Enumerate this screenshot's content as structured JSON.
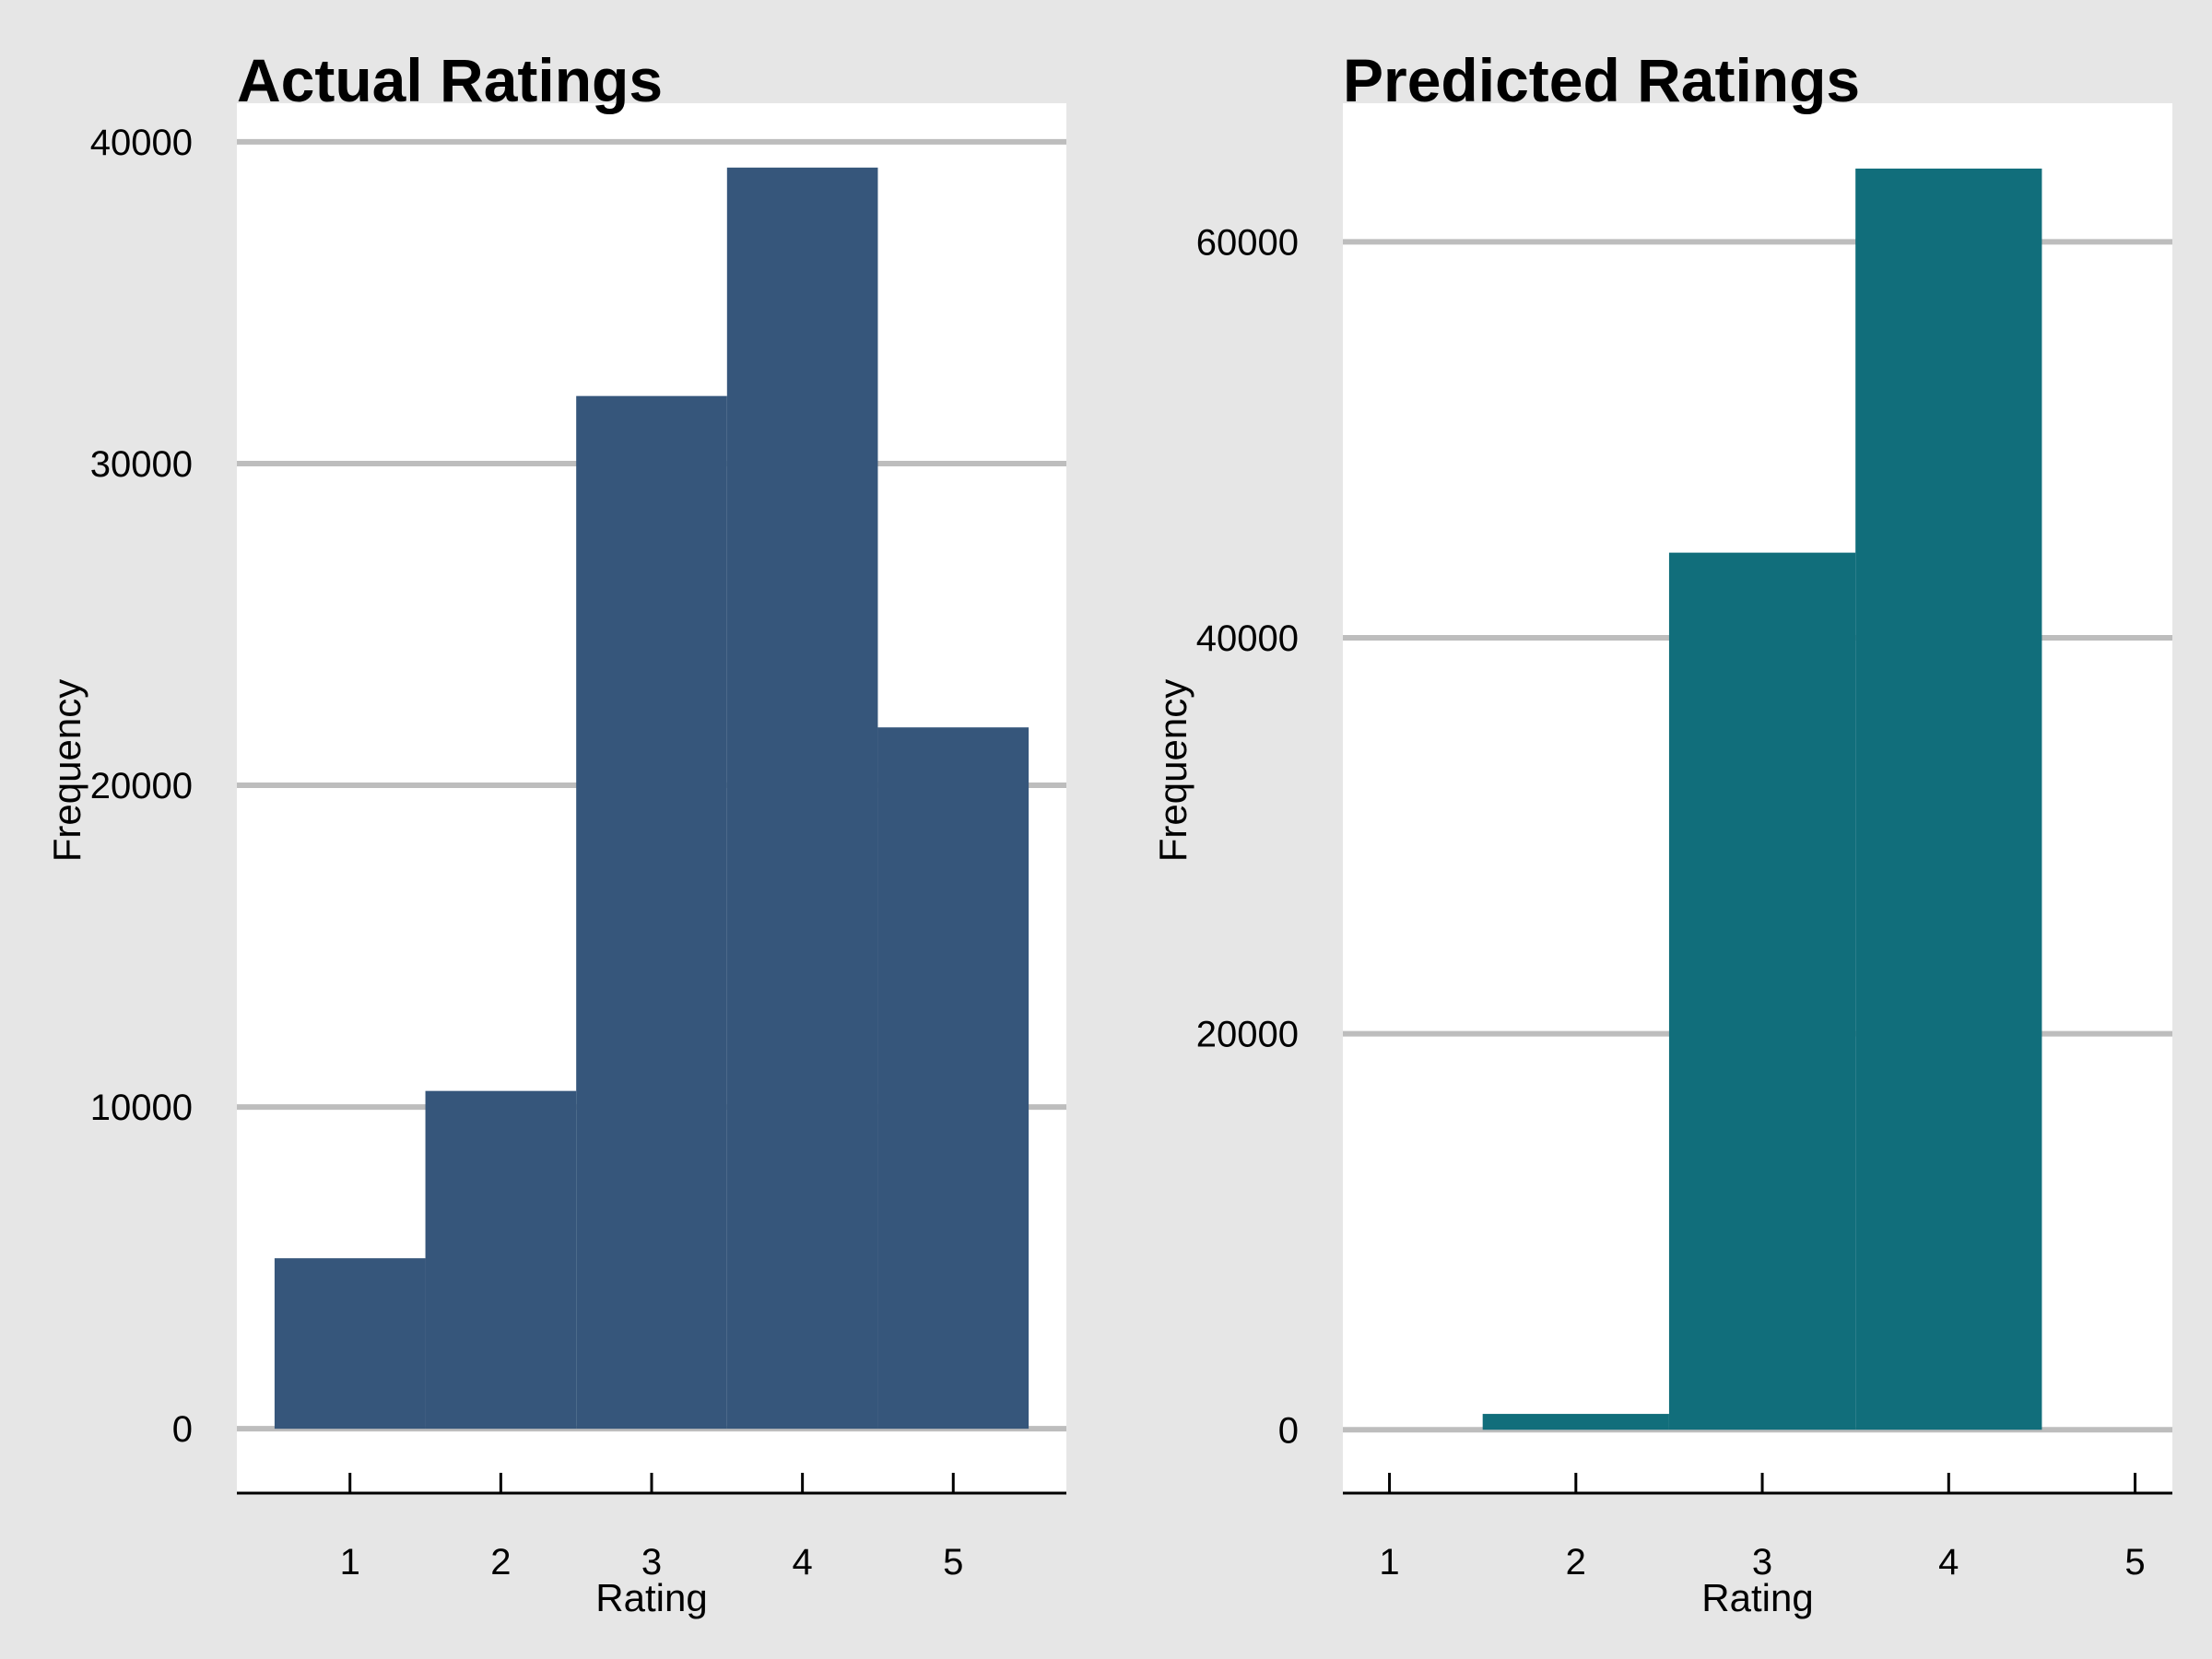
{
  "chart_data": [
    {
      "type": "bar",
      "title": "Actual Ratings",
      "xlabel": "Rating",
      "ylabel": "Frequency",
      "categories": [
        "1",
        "2",
        "3",
        "4",
        "5"
      ],
      "x": [
        1,
        2,
        3,
        4,
        5
      ],
      "values": [
        5300,
        10500,
        32100,
        39200,
        21800
      ],
      "xlim": [
        0.25,
        5.75
      ],
      "ylim": [
        -2000,
        41200
      ],
      "yticks": [
        0,
        10000,
        20000,
        30000,
        40000
      ],
      "xticks": [
        1,
        2,
        3,
        4,
        5
      ],
      "grid": "horizontal",
      "color": "#36567b"
    },
    {
      "type": "bar",
      "title": "Predicted Ratings",
      "xlabel": "Rating",
      "ylabel": "Frequency",
      "categories": [
        "1",
        "2",
        "3",
        "4",
        "5"
      ],
      "x": [
        1,
        2,
        3,
        4,
        5
      ],
      "values": [
        0,
        800,
        44300,
        63700,
        0
      ],
      "xlim": [
        0.75,
        5.2
      ],
      "ylim": [
        -3200,
        67000
      ],
      "yticks": [
        0,
        20000,
        40000,
        60000
      ],
      "xticks": [
        1,
        2,
        3,
        4,
        5
      ],
      "grid": "horizontal",
      "color": "#116e7b"
    }
  ]
}
